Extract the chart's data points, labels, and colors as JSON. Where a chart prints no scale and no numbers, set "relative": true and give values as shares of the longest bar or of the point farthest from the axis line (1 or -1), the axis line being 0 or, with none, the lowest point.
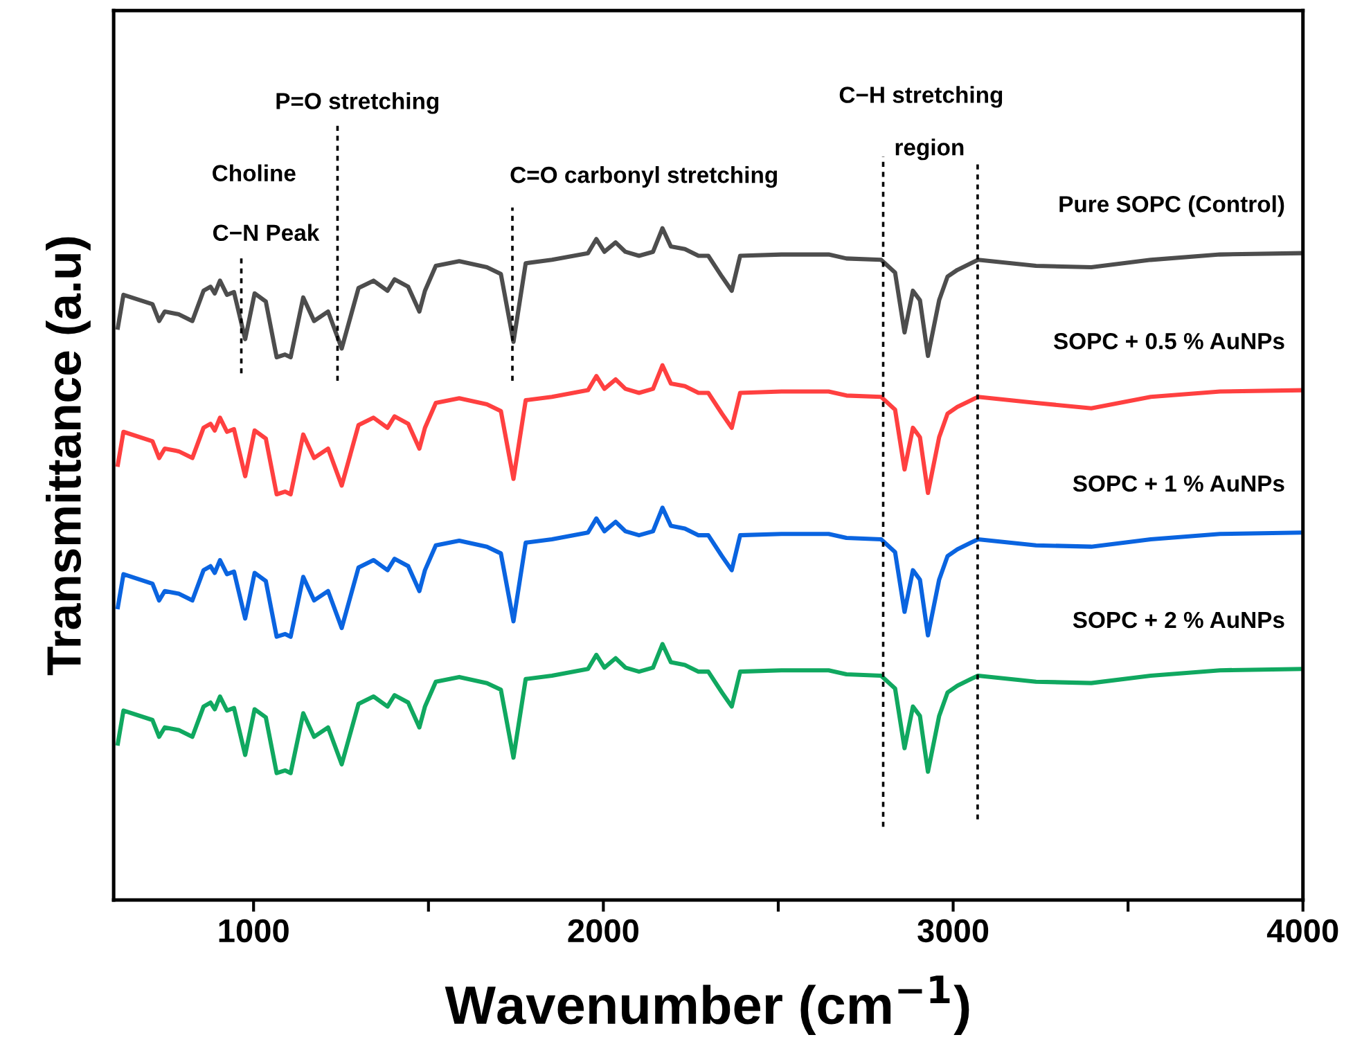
{
  "chart_data": {
    "type": "line",
    "relative": true,
    "xlabel": "Wavenumber (cm$^{−1}$)",
    "ylabel": "Transmittance (a.u)",
    "xlim": [
      600,
      4000
    ],
    "xticks": [
      1000,
      {
        "value": 1500,
        "label": null
      },
      2000,
      {
        "value": 2500,
        "label": null
      },
      3000,
      {
        "value": 3500,
        "label": null
      },
      4000
    ],
    "grid": false,
    "legend": false,
    "line_style": "solid",
    "marker": "none",
    "x": [
      612,
      628,
      711,
      730,
      746,
      786,
      825,
      857,
      877,
      889,
      904,
      924,
      944,
      976,
      1003,
      1035,
      1066,
      1090,
      1106,
      1142,
      1173,
      1213,
      1252,
      1300,
      1343,
      1383,
      1403,
      1442,
      1474,
      1490,
      1521,
      1588,
      1667,
      1707,
      1743,
      1778,
      1853,
      1956,
      1980,
      2003,
      2035,
      2063,
      2102,
      2142,
      2169,
      2193,
      2233,
      2272,
      2300,
      2339,
      2367,
      2391,
      2509,
      2644,
      2695,
      2794,
      2834,
      2861,
      2885,
      2905,
      2928,
      2960,
      2984,
      3012,
      3051,
      3071,
      3237,
      3395,
      3565,
      3763,
      4000
    ],
    "series": [
      {
        "name": "Pure SOPC (Control)",
        "color": "#4d4d4d",
        "values": [
          0.852,
          0.901,
          0.887,
          0.862,
          0.876,
          0.872,
          0.862,
          0.907,
          0.913,
          0.903,
          0.922,
          0.901,
          0.905,
          0.835,
          0.903,
          0.891,
          0.808,
          0.812,
          0.808,
          0.897,
          0.862,
          0.876,
          0.821,
          0.911,
          0.922,
          0.907,
          0.924,
          0.913,
          0.876,
          0.907,
          0.944,
          0.951,
          0.942,
          0.932,
          0.831,
          0.948,
          0.953,
          0.963,
          0.984,
          0.965,
          0.979,
          0.965,
          0.959,
          0.965,
          1,
          0.973,
          0.969,
          0.959,
          0.959,
          0.928,
          0.907,
          0.959,
          0.961,
          0.961,
          0.955,
          0.953,
          0.934,
          0.845,
          0.907,
          0.893,
          0.81,
          0.893,
          0.928,
          0.938,
          0.948,
          0.953,
          0.944,
          0.942,
          0.953,
          0.961,
          0.963
        ]
      },
      {
        "name": "SOPC + 0.5 % AuNPs",
        "color": "#ff4040",
        "values": [
          0.648,
          0.697,
          0.683,
          0.658,
          0.672,
          0.668,
          0.658,
          0.703,
          0.709,
          0.699,
          0.718,
          0.697,
          0.701,
          0.631,
          0.699,
          0.687,
          0.604,
          0.608,
          0.604,
          0.693,
          0.658,
          0.672,
          0.617,
          0.707,
          0.718,
          0.703,
          0.72,
          0.709,
          0.672,
          0.703,
          0.74,
          0.747,
          0.738,
          0.728,
          0.627,
          0.744,
          0.749,
          0.759,
          0.78,
          0.761,
          0.775,
          0.761,
          0.755,
          0.761,
          0.796,
          0.769,
          0.765,
          0.755,
          0.755,
          0.724,
          0.703,
          0.755,
          0.757,
          0.757,
          0.751,
          0.749,
          0.73,
          0.641,
          0.703,
          0.689,
          0.606,
          0.689,
          0.724,
          0.734,
          0.744,
          0.749,
          0.74,
          0.732,
          0.749,
          0.757,
          0.759
        ]
      },
      {
        "name": "SOPC + 1 % AuNPs",
        "color": "#0a64e0",
        "values": [
          0.436,
          0.485,
          0.471,
          0.446,
          0.46,
          0.456,
          0.446,
          0.491,
          0.497,
          0.487,
          0.506,
          0.485,
          0.489,
          0.419,
          0.487,
          0.475,
          0.392,
          0.396,
          0.392,
          0.481,
          0.446,
          0.46,
          0.405,
          0.495,
          0.506,
          0.491,
          0.508,
          0.497,
          0.46,
          0.491,
          0.528,
          0.535,
          0.526,
          0.516,
          0.415,
          0.532,
          0.537,
          0.547,
          0.568,
          0.549,
          0.563,
          0.549,
          0.543,
          0.549,
          0.584,
          0.557,
          0.553,
          0.543,
          0.543,
          0.512,
          0.491,
          0.543,
          0.545,
          0.545,
          0.539,
          0.537,
          0.518,
          0.429,
          0.491,
          0.477,
          0.394,
          0.477,
          0.512,
          0.522,
          0.532,
          0.537,
          0.528,
          0.526,
          0.537,
          0.545,
          0.547
        ]
      },
      {
        "name": "SOPC + 2 % AuNPs",
        "color": "#10a860",
        "values": [
          0.233,
          0.282,
          0.268,
          0.243,
          0.257,
          0.253,
          0.243,
          0.288,
          0.294,
          0.284,
          0.303,
          0.282,
          0.286,
          0.216,
          0.284,
          0.272,
          0.189,
          0.193,
          0.189,
          0.278,
          0.243,
          0.257,
          0.202,
          0.292,
          0.303,
          0.288,
          0.305,
          0.294,
          0.257,
          0.288,
          0.325,
          0.332,
          0.323,
          0.313,
          0.212,
          0.329,
          0.334,
          0.344,
          0.365,
          0.346,
          0.36,
          0.346,
          0.34,
          0.346,
          0.381,
          0.354,
          0.35,
          0.34,
          0.34,
          0.309,
          0.288,
          0.34,
          0.342,
          0.342,
          0.336,
          0.334,
          0.315,
          0.226,
          0.288,
          0.274,
          0.191,
          0.274,
          0.309,
          0.319,
          0.329,
          0.334,
          0.325,
          0.323,
          0.334,
          0.342,
          0.344
        ]
      }
    ],
    "ref_lines": [
      {
        "axis": "x",
        "value": 965,
        "color": "#000000",
        "line_style": "dotted"
      },
      {
        "axis": "x",
        "value": 1240,
        "color": "#000000",
        "line_style": "dotted"
      },
      {
        "axis": "x",
        "value": 1740,
        "color": "#000000",
        "line_style": "dotted"
      },
      {
        "axis": "x",
        "value": 2800,
        "color": "#000000",
        "line_style": "dotted"
      },
      {
        "axis": "x",
        "value": 3070,
        "color": "#000000",
        "line_style": "dotted"
      }
    ],
    "annotations": [
      "Choline",
      "C−N Peak",
      "P=O stretching",
      "C=O carbonyl stretching",
      "C−H stretching",
      "region"
    ]
  }
}
